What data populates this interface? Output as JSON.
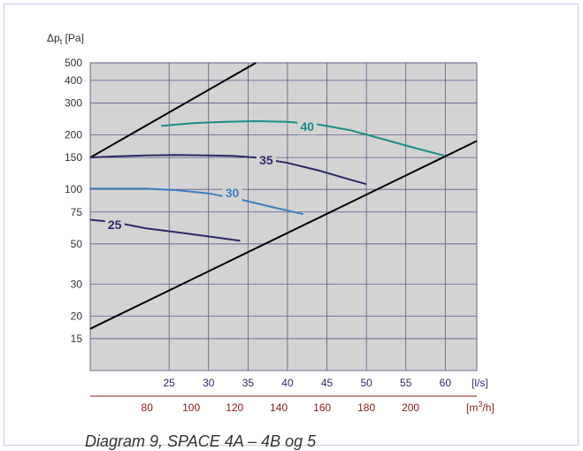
{
  "chart_data": {
    "type": "line",
    "ylabel_main": "Δp",
    "ylabel_sub": "t",
    "ylabel_unit": " [Pa]",
    "yscale": "log",
    "ylim": [
      10,
      500
    ],
    "xlim": [
      15,
      64
    ],
    "yticks": [
      15,
      20,
      30,
      50,
      75,
      100,
      150,
      200,
      300,
      400,
      500
    ],
    "ytick_labels": [
      "15",
      "20",
      "30",
      "50",
      "75",
      "100",
      "150",
      "200",
      "300",
      "400",
      "500"
    ],
    "x_ticks": [
      25,
      30,
      35,
      40,
      45,
      50,
      55,
      60
    ],
    "x_tick_labels": [
      "25",
      "30",
      "35",
      "40",
      "45",
      "50",
      "55",
      "60"
    ],
    "x_unit": "[l/s]",
    "x2_ticks_ls": [
      22.2,
      27.8,
      33.3,
      38.9,
      44.4,
      50,
      55.6
    ],
    "x2_tick_labels": [
      "80",
      "100",
      "120",
      "140",
      "160",
      "180",
      "200"
    ],
    "x2_unit_main": "[m",
    "x2_unit_sup": "3",
    "x2_unit_end": "/h]",
    "grid": true,
    "series": [
      {
        "name": "40",
        "color": "#1a8c86",
        "label_x": 42.5,
        "label_y": 222,
        "x": [
          24,
          28,
          32,
          36,
          40,
          44,
          48,
          52,
          56,
          60
        ],
        "y": [
          224,
          232,
          236,
          238,
          236,
          228,
          212,
          190,
          170,
          153
        ]
      },
      {
        "name": "35",
        "color": "#2a2a6a",
        "label_x": 37.3,
        "label_y": 145,
        "x": [
          15,
          18,
          22,
          26,
          30,
          33,
          36,
          40,
          44,
          48,
          50
        ],
        "y": [
          150,
          152,
          154,
          155,
          154,
          153,
          150,
          140,
          127,
          113,
          107
        ]
      },
      {
        "name": "30",
        "color": "#3a7fc4",
        "label_x": 33.0,
        "label_y": 96,
        "x": [
          15,
          18,
          22,
          26,
          30,
          34,
          38,
          42
        ],
        "y": [
          101,
          101,
          101,
          99,
          95,
          88,
          80,
          73
        ]
      },
      {
        "name": "25",
        "color": "#2a2a6a",
        "label_x": 18.1,
        "label_y": 64,
        "x": [
          15,
          18,
          22,
          26,
          30,
          34
        ],
        "y": [
          68,
          66,
          61,
          58,
          55,
          52
        ]
      }
    ],
    "system_lines": [
      {
        "color": "#000000",
        "x": [
          15,
          36
        ],
        "y": [
          150,
          500
        ]
      },
      {
        "color": "#000000",
        "x": [
          15,
          64
        ],
        "y": [
          17,
          185
        ]
      }
    ],
    "title": "Diagram 9, SPACE 4A – 4B og 5"
  }
}
